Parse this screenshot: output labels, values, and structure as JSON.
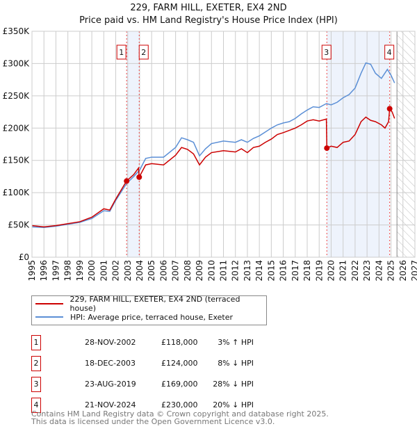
{
  "chart_data": {
    "type": "line",
    "title": "229, FARM HILL, EXETER, EX4 2ND",
    "subtitle": "Price paid vs. HM Land Registry's House Price Index (HPI)",
    "xlim": [
      1995,
      2027
    ],
    "ylim": [
      0,
      350000
    ],
    "x_ticks": [
      "1995",
      "1996",
      "1997",
      "1998",
      "1999",
      "2000",
      "2001",
      "2002",
      "2003",
      "2004",
      "2005",
      "2006",
      "2007",
      "2008",
      "2009",
      "2010",
      "2011",
      "2012",
      "2013",
      "2014",
      "2015",
      "2016",
      "2017",
      "2018",
      "2019",
      "2020",
      "2021",
      "2022",
      "2023",
      "2024",
      "2025",
      "2026",
      "2027"
    ],
    "y_ticks": [
      {
        "v": 0,
        "l": "£0"
      },
      {
        "v": 50000,
        "l": "£50K"
      },
      {
        "v": 100000,
        "l": "£100K"
      },
      {
        "v": 150000,
        "l": "£150K"
      },
      {
        "v": 200000,
        "l": "£200K"
      },
      {
        "v": 250000,
        "l": "£250K"
      },
      {
        "v": 300000,
        "l": "£300K"
      },
      {
        "v": 350000,
        "l": "£350K"
      }
    ],
    "series": [
      {
        "name": "229, FARM HILL, EXETER, EX4 2ND (terraced house)",
        "color": "#cc0000",
        "x": [
          1995,
          1996,
          1997,
          1998,
          1999,
          2000,
          2001,
          2001.5,
          2002,
          2002.9,
          2003.5,
          2003.9,
          2003.96,
          2004.5,
          2005,
          2006,
          2007,
          2007.5,
          2008,
          2008.5,
          2009,
          2009.5,
          2010,
          2011,
          2012,
          2012.5,
          2013,
          2013.5,
          2014,
          2014.5,
          2015,
          2015.5,
          2016,
          2017,
          2017.5,
          2018,
          2018.5,
          2019,
          2019.6,
          2019.64,
          2020,
          2020.5,
          2021,
          2021.5,
          2022,
          2022.5,
          2022.9,
          2023.3,
          2023.7,
          2024.2,
          2024.5,
          2024.8,
          2024.89,
          2025.1,
          2025.3
        ],
        "y": [
          49000,
          47000,
          49000,
          52000,
          55000,
          62000,
          75000,
          73000,
          90000,
          118000,
          128000,
          138000,
          124000,
          143000,
          145000,
          143000,
          158000,
          170000,
          167000,
          160000,
          143000,
          155000,
          162000,
          165000,
          163000,
          168000,
          162000,
          170000,
          172000,
          178000,
          183000,
          190000,
          193000,
          200000,
          205000,
          211000,
          213000,
          211000,
          214000,
          169000,
          172000,
          170000,
          178000,
          180000,
          190000,
          210000,
          217000,
          212000,
          210000,
          205000,
          200000,
          210000,
          230000,
          225000,
          215000
        ]
      },
      {
        "name": "HPI: Average price, terraced house, Exeter",
        "color": "#5b8fd6",
        "x": [
          1995,
          1996,
          1997,
          1998,
          1999,
          2000,
          2001,
          2001.5,
          2002,
          2002.9,
          2003.5,
          2004,
          2004.5,
          2005,
          2006,
          2007,
          2007.5,
          2008,
          2008.5,
          2009,
          2009.5,
          2010,
          2011,
          2012,
          2012.5,
          2013,
          2013.5,
          2014,
          2014.5,
          2015,
          2015.5,
          2016,
          2016.5,
          2017,
          2017.5,
          2018,
          2018.5,
          2019,
          2019.6,
          2020,
          2020.5,
          2021,
          2021.5,
          2022,
          2022.5,
          2022.9,
          2023.3,
          2023.7,
          2024.2,
          2024.7,
          2025.0,
          2025.3
        ],
        "y": [
          47000,
          46000,
          48000,
          51000,
          54000,
          60000,
          72000,
          71000,
          88000,
          114000,
          125000,
          135000,
          153000,
          155000,
          155000,
          170000,
          185000,
          182000,
          178000,
          157000,
          168000,
          176000,
          180000,
          178000,
          182000,
          178000,
          184000,
          188000,
          194000,
          200000,
          205000,
          208000,
          210000,
          215000,
          222000,
          228000,
          233000,
          232000,
          238000,
          236000,
          240000,
          247000,
          252000,
          262000,
          285000,
          301000,
          299000,
          285000,
          277000,
          291000,
          282000,
          270000
        ]
      }
    ],
    "sales": [
      {
        "n": "1",
        "x": 2002.91,
        "y": 118000,
        "date": "28-NOV-2002",
        "price": "£118,000",
        "hpi": "3% ↑ HPI"
      },
      {
        "n": "2",
        "x": 2003.96,
        "y": 124000,
        "date": "18-DEC-2003",
        "price": "£124,000",
        "hpi": "8% ↓ HPI"
      },
      {
        "n": "3",
        "x": 2019.64,
        "y": 169000,
        "date": "23-AUG-2019",
        "price": "£169,000",
        "hpi": "28% ↓ HPI"
      },
      {
        "n": "4",
        "x": 2024.89,
        "y": 230000,
        "date": "21-NOV-2024",
        "price": "£230,000",
        "hpi": "20% ↓ HPI"
      }
    ],
    "shaded": [
      [
        2002.91,
        2003.96
      ],
      [
        2019.64,
        2024.89
      ]
    ],
    "forecast_start": 2025.5,
    "legend_position": "below"
  },
  "footer": {
    "line1": "Contains HM Land Registry data © Crown copyright and database right 2025.",
    "line2": "This data is licensed under the Open Government Licence v3.0."
  }
}
